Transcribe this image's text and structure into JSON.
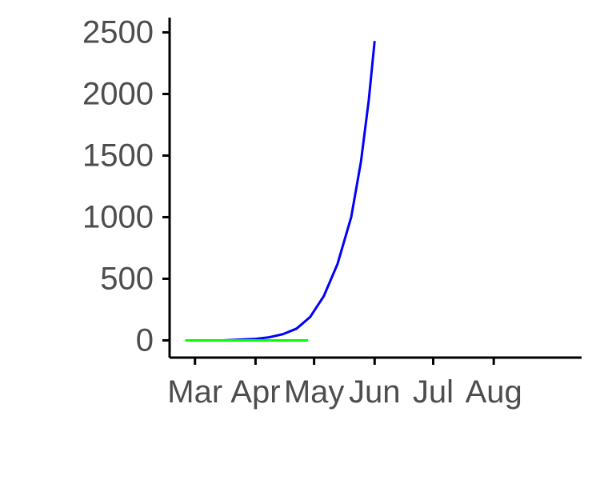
{
  "chart_data": {
    "type": "line",
    "title": "",
    "xlabel": "",
    "ylabel": "",
    "x_tick_labels": [
      "Mar",
      "Apr",
      "May",
      "Jun",
      "Jul",
      "Aug"
    ],
    "y_tick_labels": [
      "0",
      "500",
      "1000",
      "1500",
      "2000",
      "2500"
    ],
    "y_ticks": [
      0,
      500,
      1000,
      1500,
      2000,
      2500
    ],
    "ylim": [
      -140,
      2620
    ],
    "grid": false,
    "legend": "none",
    "series": [
      {
        "color": "#0000ff",
        "points": [
          {
            "x": "2020-03-15",
            "y": 0
          },
          {
            "x": "2020-04-01",
            "y": 12
          },
          {
            "x": "2020-04-08",
            "y": 25
          },
          {
            "x": "2020-04-15",
            "y": 50
          },
          {
            "x": "2020-04-22",
            "y": 95
          },
          {
            "x": "2020-04-29",
            "y": 190
          },
          {
            "x": "2020-05-06",
            "y": 360
          },
          {
            "x": "2020-05-13",
            "y": 620
          },
          {
            "x": "2020-05-20",
            "y": 1000
          },
          {
            "x": "2020-05-25",
            "y": 1450
          },
          {
            "x": "2020-05-29",
            "y": 1950
          },
          {
            "x": "2020-06-01",
            "y": 2430
          }
        ]
      },
      {
        "color": "#00ff00",
        "points": [
          {
            "x": "2020-02-25",
            "y": 0
          },
          {
            "x": "2020-04-28",
            "y": 0
          }
        ]
      }
    ]
  }
}
